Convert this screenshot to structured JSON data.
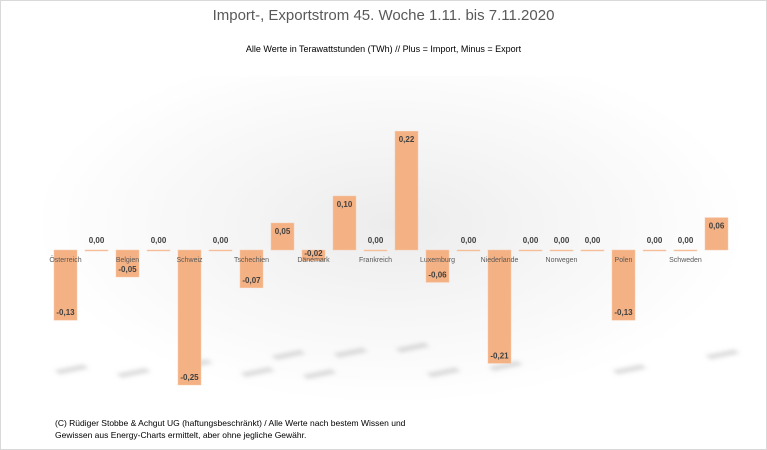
{
  "colors": {
    "bar": "#f4b183",
    "bar_edge": "#f8cbad",
    "shadow": "#9a9a9a"
  },
  "chart_data": {
    "type": "bar",
    "title": "Import-, Exportstrom 45. Woche 1.11. bis 7.11.2020",
    "subtitle": "Alle Werte in Terawattstunden (TWh) // Plus = Import, Minus = Export",
    "xlabel": "",
    "ylabel": "",
    "ylim": [
      -0.25,
      0.22
    ],
    "grid": false,
    "categories": [
      "Österreich",
      "",
      "Belgien",
      "",
      "Schweiz",
      "",
      "Tschechien",
      "",
      "Dänemark",
      "",
      "Frankreich",
      "",
      "Luxemburg",
      "",
      "Niederlande",
      "",
      "Norwegen",
      "",
      "Polen",
      "",
      "Schweden",
      ""
    ],
    "values": [
      -0.13,
      0.0,
      -0.05,
      0.0,
      -0.25,
      0.0,
      -0.07,
      0.05,
      -0.02,
      0.1,
      0.0,
      0.22,
      -0.06,
      0.0,
      -0.21,
      0.0,
      0.0,
      0.0,
      -0.13,
      0.0,
      0.0,
      0.06
    ],
    "value_labels": [
      "-0,13",
      "0,00",
      "-0,05",
      "0,00",
      "-0,25",
      "0,00",
      "-0,07",
      "0,05",
      "-0,02",
      "0,10",
      "0,00",
      "0,22",
      "-0,06",
      "0,00",
      "-0,21",
      "0,00",
      "0,00",
      "0,00",
      "-0,13",
      "0,00",
      "0,00",
      "0,06"
    ]
  },
  "footnote": {
    "line1": "(C) Rüdiger Stobbe & Achgut UG (haftungsbeschränkt) / Alle Werte nach bestem Wissen und",
    "line2": "Gewissen aus Energy-Charts ermittelt, aber ohne jegliche Gewähr."
  }
}
